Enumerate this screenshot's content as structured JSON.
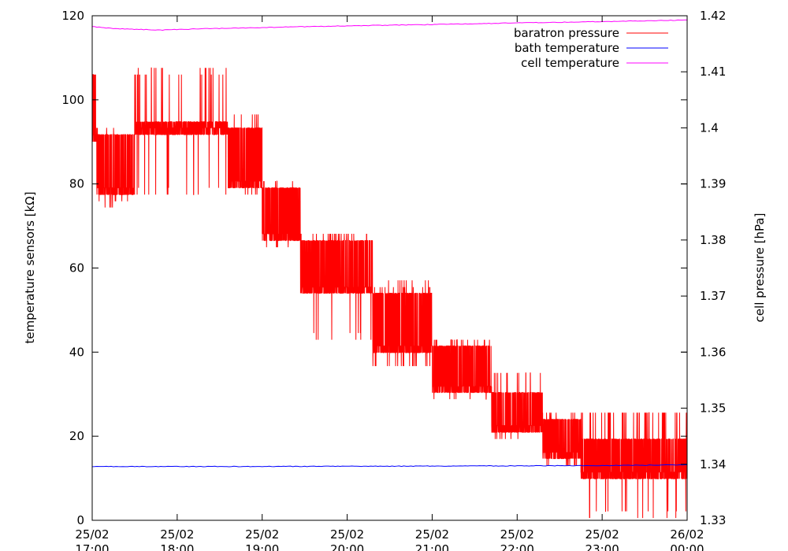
{
  "chart_data": {
    "type": "line",
    "ylabel": "temperature sensors [kΩ]",
    "y2label": "cell pressure [hPa]",
    "ylim": [
      0,
      120
    ],
    "y2lim": [
      1.33,
      1.42
    ],
    "x_range_hours": [
      17,
      24
    ],
    "yticks": [
      "0",
      "20",
      "40",
      "60",
      "80",
      "100",
      "120"
    ],
    "y2ticks": [
      "1.33",
      "1.34",
      "1.35",
      "1.36",
      "1.37",
      "1.38",
      "1.39",
      "1.4",
      "1.41",
      "1.42"
    ],
    "xticks": [
      {
        "date": "25/02",
        "time": "17:00"
      },
      {
        "date": "25/02",
        "time": "18:00"
      },
      {
        "date": "25/02",
        "time": "19:00"
      },
      {
        "date": "25/02",
        "time": "20:00"
      },
      {
        "date": "25/02",
        "time": "21:00"
      },
      {
        "date": "25/02",
        "time": "22:00"
      },
      {
        "date": "25/02",
        "time": "23:00"
      },
      {
        "date": "26/02",
        "time": "00:00"
      }
    ],
    "legend_position": "top-right",
    "grid": false,
    "series": [
      {
        "name": "baratron pressure",
        "axis": "y2",
        "color": "#ff0000",
        "segments": [
          {
            "x": [
              17.0,
              17.05
            ],
            "levels": [
              1.3976,
              1.3988,
              1.4095
            ],
            "spikes": [
              1.4107
            ]
          },
          {
            "x": [
              17.05,
              17.5
            ],
            "levels": [
              1.3881,
              1.3893,
              1.3988
            ],
            "spikes": [
              1.3869,
              1.4
            ],
            "dips": [
              1.3858
            ]
          },
          {
            "x": [
              17.5,
              18.6
            ],
            "levels": [
              1.3988,
              1.4,
              1.4011
            ],
            "spikes": [
              1.4095,
              1.4107
            ],
            "dips": [
              1.3893,
              1.3881
            ]
          },
          {
            "x": [
              18.6,
              19.0
            ],
            "levels": [
              1.3893,
              1.3905,
              1.4
            ],
            "spikes": [
              1.4024
            ],
            "dips": [
              1.3881
            ]
          },
          {
            "x": [
              19.0,
              19.45
            ],
            "levels": [
              1.3799,
              1.3811,
              1.3893
            ],
            "spikes": [
              1.3905
            ],
            "dips": [
              1.3787
            ]
          },
          {
            "x": [
              19.45,
              20.3
            ],
            "levels": [
              1.3705,
              1.3716,
              1.3799
            ],
            "spikes": [
              1.3811
            ],
            "dips": [
              1.3622,
              1.3634
            ]
          },
          {
            "x": [
              20.3,
              21.0
            ],
            "levels": [
              1.3599,
              1.3611,
              1.3705
            ],
            "spikes": [
              1.3716,
              1.3728
            ],
            "dips": [
              1.3575
            ]
          },
          {
            "x": [
              21.0,
              21.7
            ],
            "levels": [
              1.3528,
              1.3539,
              1.3611
            ],
            "spikes": [
              1.3622
            ],
            "dips": [
              1.3516
            ]
          },
          {
            "x": [
              21.7,
              22.3
            ],
            "levels": [
              1.3457,
              1.3469,
              1.3528
            ],
            "spikes": [
              1.3563
            ],
            "dips": [
              1.3445
            ]
          },
          {
            "x": [
              22.3,
              22.75
            ],
            "levels": [
              1.341,
              1.3421,
              1.348
            ],
            "spikes": [
              1.3492
            ],
            "dips": [
              1.3398
            ]
          },
          {
            "x": [
              22.75,
              24.0
            ],
            "levels": [
              1.3374,
              1.3386,
              1.3445
            ],
            "spikes": [
              1.3492
            ],
            "dips": [
              1.3304,
              1.3316
            ]
          }
        ]
      },
      {
        "name": "bath temperature",
        "axis": "y",
        "color": "#0000ff",
        "x": [
          17.0,
          19.0,
          21.0,
          23.0,
          24.0
        ],
        "values": [
          12.8,
          12.8,
          12.9,
          13.0,
          13.2
        ]
      },
      {
        "name": "cell temperature",
        "axis": "y",
        "color": "#ff00ff",
        "x": [
          17.0,
          17.3,
          17.8,
          18.3,
          19.0,
          20.0,
          21.0,
          22.0,
          23.0,
          24.0
        ],
        "values": [
          117.4,
          116.9,
          116.6,
          116.9,
          117.2,
          117.6,
          117.9,
          118.3,
          118.6,
          119.0
        ]
      }
    ]
  }
}
